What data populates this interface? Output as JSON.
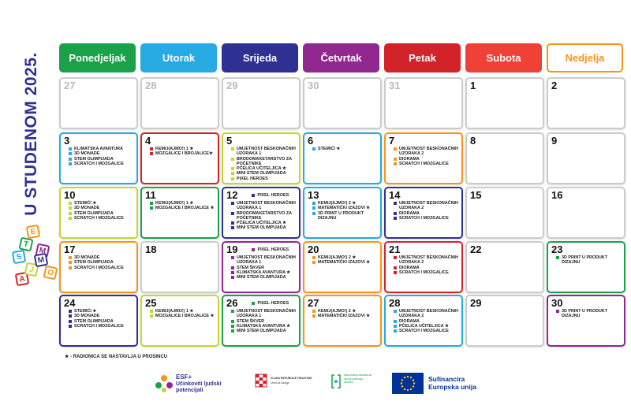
{
  "title": "U STUDENOM 2025.",
  "stem_logo": [
    "S",
    "T",
    "E",
    "M",
    "A",
    "J",
    "M",
    "O"
  ],
  "headers": [
    {
      "text": "Ponedjeljak",
      "color": "#1aa14a"
    },
    {
      "text": "Utorak",
      "color": "#27a9e1"
    },
    {
      "text": "Srijeda",
      "color": "#2e3192"
    },
    {
      "text": "Četvrtak",
      "color": "#92278f"
    },
    {
      "text": "Petak",
      "color": "#d2232a"
    },
    {
      "text": "Subota",
      "color": "#ef4136"
    },
    {
      "text": "Nedjelja",
      "color": "#f7941d"
    }
  ],
  "weeks": [
    {
      "cells": [
        {
          "day": 27,
          "muted": true,
          "color": "#cccccc",
          "items": []
        },
        {
          "day": 28,
          "muted": true,
          "color": "#cccccc",
          "items": []
        },
        {
          "day": 29,
          "muted": true,
          "color": "#cccccc",
          "items": []
        },
        {
          "day": 30,
          "muted": true,
          "color": "#cccccc",
          "items": []
        },
        {
          "day": 31,
          "muted": true,
          "color": "#cccccc",
          "items": []
        },
        {
          "day": 1,
          "color": "#cccccc",
          "items": []
        },
        {
          "day": 2,
          "color": "#cccccc",
          "items": []
        }
      ]
    },
    {
      "cells": [
        {
          "day": 3,
          "color": "#27a9e1",
          "items": [
            "KLIMATSKA AVANTURA",
            "3D MONADE",
            "STEM OLIMPIJADA",
            "SCRATCH I MOZGALICE"
          ]
        },
        {
          "day": 4,
          "color": "#d2232a",
          "items": [
            "KEMIJ(AJMO!) 1 ★",
            "MOZGALICE I BROJALICE★"
          ]
        },
        {
          "day": 5,
          "color": "#c5d62d",
          "items": [
            "UMJETNOST BESKONAČNIH UZORAKA 1",
            "BRODOMAKETARSTVO ZA POČETNIKE",
            "PČELICA UČITELJICA ★",
            "MINI STEM OLIMPIJADA",
            "PIXEL HEROES"
          ]
        },
        {
          "day": 6,
          "color": "#27a9e1",
          "items": [
            "STEMIĆI ★"
          ]
        },
        {
          "day": 7,
          "color": "#f7941d",
          "items": [
            "UMJETNOST BESKONAČNIH UZORAKA 2",
            "DIORAMA",
            "SCRATCH I MOZGALICE"
          ]
        },
        {
          "day": 8,
          "color": "#cccccc",
          "items": []
        },
        {
          "day": 9,
          "color": "#cccccc",
          "items": []
        }
      ]
    },
    {
      "cells": [
        {
          "day": 10,
          "color": "#c5d62d",
          "items": [
            "STEMIĆI ★",
            "3D MONADE",
            "STEM OLIMPIJADA",
            "SCRATCH I MOZGALICE"
          ]
        },
        {
          "day": 11,
          "color": "#1aa14a",
          "items": [
            "KEMIJ(AJMO!) 1 ★",
            "MOZGALICE I BROJALICE ★"
          ]
        },
        {
          "day": 12,
          "color": "#2e3192",
          "beside": true,
          "items": [
            "PIXEL HEROES",
            "UMJETNOST BESKONAČNIH UZORAKA 1",
            "BRODOMAKETARSTVO ZA POČETNIKE",
            "PČELICA UČITELJICA ★",
            "MINI STEM OLIMPIJADA"
          ]
        },
        {
          "day": 13,
          "color": "#27a9e1",
          "items": [
            "KEMIJ(AJMO!) 2 ★",
            "MATEMATIČKI IZAZOVI ★",
            "3D PRINT U PRODUKT DIZAJNU"
          ]
        },
        {
          "day": 14,
          "color": "#2e3192",
          "items": [
            "UMJETNOST BESKONAČNIH UZORAKA 2",
            "DIORAMA",
            "SCRATCH I MOZGALICE"
          ]
        },
        {
          "day": 15,
          "color": "#cccccc",
          "items": []
        },
        {
          "day": 16,
          "color": "#cccccc",
          "items": []
        }
      ]
    },
    {
      "cells": [
        {
          "day": 17,
          "color": "#f7941d",
          "items": [
            "3D MONADE",
            "STEM OLIMPIJADA",
            "SCRATCH I MOZGALICE"
          ]
        },
        {
          "day": 18,
          "color": "#cccccc",
          "items": []
        },
        {
          "day": 19,
          "color": "#92278f",
          "beside": true,
          "items": [
            "PIXEL HEROES",
            "UMJETNOST BESKONAČNIH UZORAKA 1",
            "STEM ŠKVER",
            "KLIMATSKA AVANTURA ★",
            "MINI STEM OLIMPIJADA"
          ]
        },
        {
          "day": 20,
          "color": "#f7941d",
          "items": [
            "KEMIJ(AJMO!) 2 ★",
            "MATEMATIČKI IZAZOVI ★"
          ]
        },
        {
          "day": 21,
          "color": "#d2232a",
          "items": [
            "UMJETNOST BESKONAČNIH UZORAKA 2",
            "DIORAMA",
            "SCRATCH I MOZGALICE"
          ]
        },
        {
          "day": 22,
          "color": "#cccccc",
          "items": []
        },
        {
          "day": 23,
          "color": "#1aa14a",
          "items": [
            "3D PRINT U PRODUKT DIZAJNU"
          ]
        }
      ]
    },
    {
      "cells": [
        {
          "day": 24,
          "color": "#2e3192",
          "items": [
            "STEMIĆI ★",
            "3D MONADE",
            "STEM OLIMPIJADA",
            "SCRATCH I MOZGALICE"
          ]
        },
        {
          "day": 25,
          "color": "#c5d62d",
          "items": [
            "KEMIJ(AJMO!) 1 ★",
            "MOZGALICE I BROJALICE ★"
          ]
        },
        {
          "day": 26,
          "color": "#1aa14a",
          "beside": true,
          "items": [
            "PIXEL HEROES",
            "UMJETNOST BESKONAČNIH UZORAKA 1",
            "STEM ŠKVER",
            "KLIMATSKA AVANTURA ★",
            "MINI STEM OLIMPIJADA"
          ]
        },
        {
          "day": 27,
          "color": "#f7941d",
          "items": [
            "KEMIJ(AJMO!) 2 ★",
            "MATEMATIČKI IZAZOVI ★"
          ]
        },
        {
          "day": 28,
          "color": "#27a9e1",
          "items": [
            "UMJETNOST BESKONAČNIH UZORAKA 2",
            "DIORAMA",
            "PČELICA UČITELJICA ★",
            "SCRATCH I MOZGALICE"
          ]
        },
        {
          "day": 29,
          "color": "#cccccc",
          "items": []
        },
        {
          "day": 30,
          "color": "#92278f",
          "items": [
            "3D PRINT U PRODUKT DIZAJNU"
          ]
        }
      ]
    }
  ],
  "footnote": "★ - RADIONICA SE NASTAVLJA U PROSINCU",
  "logos": {
    "esf_title": "ESF+",
    "esf_text": "Učinkoviti ljudski potencijali",
    "gov_title": "VLADA REPUBLIKE HRVATSKE",
    "gov_text": "Ured za udruge",
    "foundation_text": "Nacionalna zaklada za razvoj civilnoga društva",
    "eu_text": "Sufinancira Europska unija"
  }
}
